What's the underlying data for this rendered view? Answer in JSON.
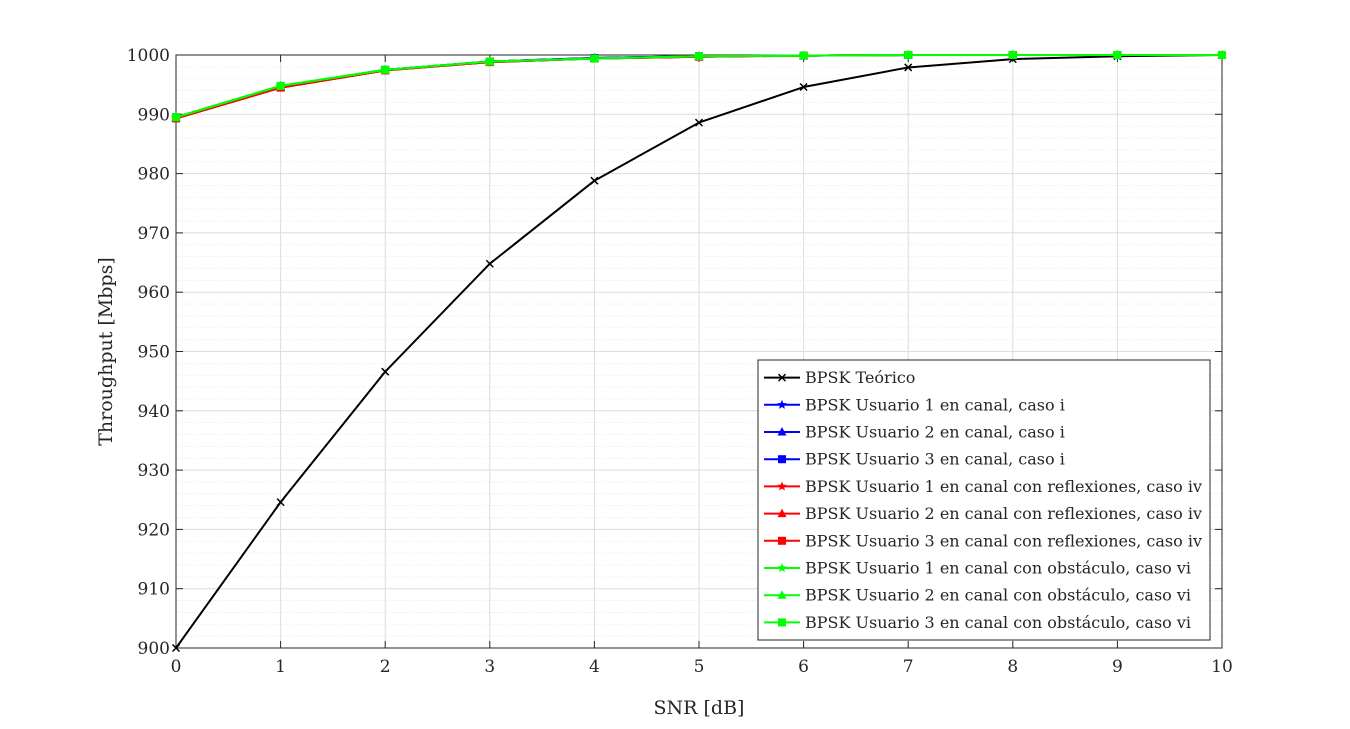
{
  "chart_data": {
    "type": "line",
    "title": "",
    "xlabel": "SNR [dB]",
    "ylabel": "Throughput [Mbps]",
    "xlim": [
      0,
      10
    ],
    "ylim": [
      900,
      1000
    ],
    "x_ticks": [
      0,
      1,
      2,
      3,
      4,
      5,
      6,
      7,
      8,
      9,
      10
    ],
    "y_ticks": [
      900,
      910,
      920,
      930,
      940,
      950,
      960,
      970,
      980,
      990,
      1000
    ],
    "x_tick_labels": [
      "0",
      "1",
      "2",
      "3",
      "4",
      "5",
      "6",
      "7",
      "8",
      "9",
      "10"
    ],
    "y_tick_labels": [
      "900",
      "910",
      "920",
      "930",
      "940",
      "950",
      "960",
      "970",
      "980",
      "990",
      "1000"
    ],
    "grid": true,
    "minor_grid_y": true,
    "legend_position": "bottom-right",
    "x": [
      0,
      1,
      2,
      3,
      4,
      5,
      6,
      7,
      8,
      9,
      10
    ],
    "series": [
      {
        "name": "BPSK Teórico",
        "color": "#000000",
        "marker": "x",
        "values": [
          900.0,
          924.6,
          946.6,
          964.8,
          978.8,
          988.6,
          994.6,
          997.9,
          999.3,
          999.8,
          1000.0
        ]
      },
      {
        "name": "BPSK Usuario 1 en canal, caso i",
        "color": "#0000ff",
        "marker": "star",
        "values": [
          989.5,
          994.7,
          997.5,
          998.9,
          999.5,
          999.8,
          999.9,
          1000.0,
          1000.0,
          1000.0,
          1000.0
        ]
      },
      {
        "name": "BPSK Usuario 2 en canal, caso i",
        "color": "#0000ff",
        "marker": "triangle",
        "values": [
          989.5,
          994.7,
          997.5,
          998.9,
          999.5,
          999.8,
          999.9,
          1000.0,
          1000.0,
          1000.0,
          1000.0
        ]
      },
      {
        "name": "BPSK Usuario 3 en canal, caso i",
        "color": "#0000ff",
        "marker": "square",
        "values": [
          989.5,
          994.7,
          997.5,
          998.9,
          999.5,
          999.8,
          999.9,
          1000.0,
          1000.0,
          1000.0,
          1000.0
        ]
      },
      {
        "name": "BPSK Usuario 1 en canal con reflexiones, caso iv",
        "color": "#ff0000",
        "marker": "star",
        "values": [
          989.3,
          994.5,
          997.4,
          998.8,
          999.4,
          999.7,
          999.9,
          1000.0,
          1000.0,
          1000.0,
          1000.0
        ]
      },
      {
        "name": "BPSK Usuario 2 en canal con reflexiones, caso iv",
        "color": "#ff0000",
        "marker": "triangle",
        "values": [
          989.3,
          994.5,
          997.4,
          998.8,
          999.4,
          999.7,
          999.9,
          1000.0,
          1000.0,
          1000.0,
          1000.0
        ]
      },
      {
        "name": "BPSK Usuario 3 en canal con reflexiones, caso iv",
        "color": "#ff0000",
        "marker": "square",
        "values": [
          989.3,
          994.5,
          997.4,
          998.8,
          999.4,
          999.7,
          999.9,
          1000.0,
          1000.0,
          1000.0,
          1000.0
        ]
      },
      {
        "name": "BPSK Usuario 1 en canal con obstáculo, caso vi",
        "color": "#00ff00",
        "marker": "star",
        "values": [
          989.5,
          994.8,
          997.5,
          998.9,
          999.4,
          999.8,
          999.9,
          1000.0,
          1000.0,
          1000.0,
          1000.0
        ]
      },
      {
        "name": "BPSK Usuario 2 en canal con obstáculo, caso vi",
        "color": "#00ff00",
        "marker": "triangle",
        "values": [
          989.5,
          994.8,
          997.5,
          998.9,
          999.4,
          999.8,
          999.9,
          1000.0,
          1000.0,
          1000.0,
          1000.0
        ]
      },
      {
        "name": "BPSK Usuario 3 en canal con obstáculo, caso vi",
        "color": "#00ff00",
        "marker": "square",
        "values": [
          989.5,
          994.8,
          997.5,
          998.9,
          999.4,
          999.8,
          999.9,
          1000.0,
          1000.0,
          1000.0,
          1000.0
        ]
      }
    ]
  }
}
